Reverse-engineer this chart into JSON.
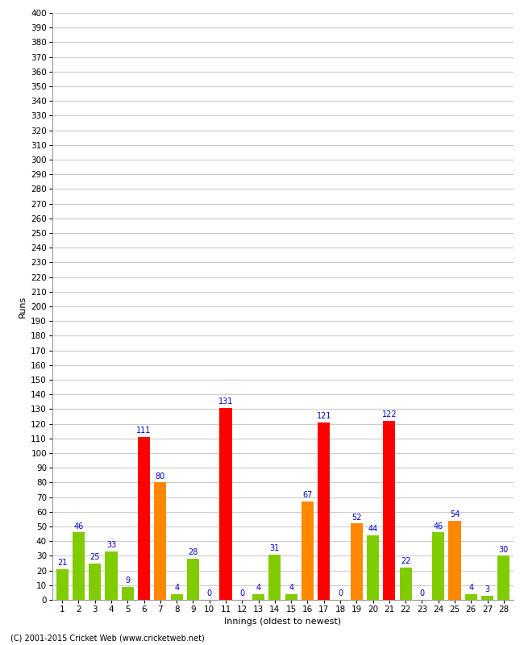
{
  "title": "",
  "xlabel": "Innings (oldest to newest)",
  "ylabel": "Runs",
  "footer": "(C) 2001-2015 Cricket Web (www.cricketweb.net)",
  "ylim": [
    0,
    400
  ],
  "yticks": [
    0,
    10,
    20,
    30,
    40,
    50,
    60,
    70,
    80,
    90,
    100,
    110,
    120,
    130,
    140,
    150,
    160,
    170,
    180,
    190,
    200,
    210,
    220,
    230,
    240,
    250,
    260,
    270,
    280,
    290,
    300,
    310,
    320,
    330,
    340,
    350,
    360,
    370,
    380,
    390,
    400
  ],
  "innings": [
    1,
    2,
    3,
    4,
    5,
    6,
    7,
    8,
    9,
    10,
    11,
    12,
    13,
    14,
    15,
    16,
    17,
    18,
    19,
    20,
    21,
    22,
    23,
    24,
    25,
    26,
    27,
    28
  ],
  "values": [
    21,
    46,
    25,
    33,
    9,
    111,
    80,
    4,
    28,
    0,
    131,
    0,
    4,
    31,
    4,
    67,
    121,
    0,
    52,
    44,
    122,
    22,
    0,
    46,
    54,
    4,
    3,
    30
  ],
  "colors": [
    "#80cc00",
    "#80cc00",
    "#80cc00",
    "#80cc00",
    "#80cc00",
    "#ff0000",
    "#ff8800",
    "#80cc00",
    "#80cc00",
    "#80cc00",
    "#ff0000",
    "#80cc00",
    "#80cc00",
    "#80cc00",
    "#80cc00",
    "#ff8800",
    "#ff0000",
    "#80cc00",
    "#ff8800",
    "#80cc00",
    "#ff0000",
    "#80cc00",
    "#80cc00",
    "#80cc00",
    "#ff8800",
    "#80cc00",
    "#80cc00",
    "#80cc00"
  ],
  "label_color": "#0000cc",
  "bg_color": "#ffffff",
  "grid_color": "#cccccc",
  "ylabel_fontsize": 8,
  "xlabel_fontsize": 8,
  "tick_fontsize": 7.5,
  "annot_fontsize": 7,
  "bar_width": 0.75
}
